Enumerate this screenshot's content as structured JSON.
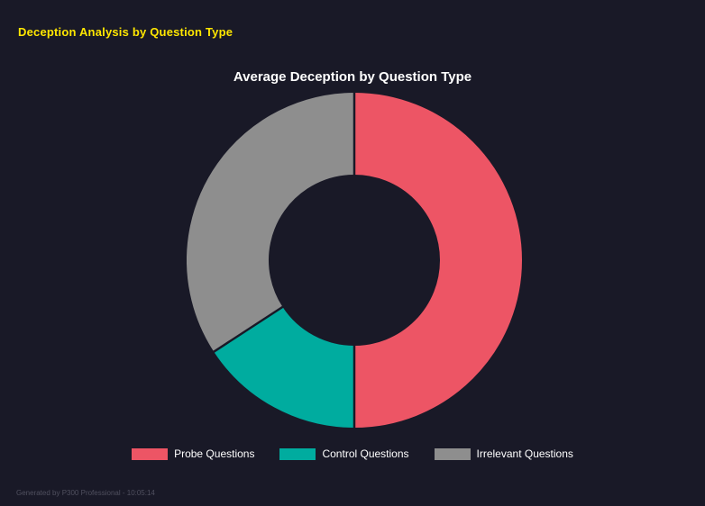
{
  "page": {
    "header": "Deception Analysis by Question Type",
    "footer": "Generated by P300 Professional - 10:05:14"
  },
  "chart_data": {
    "type": "pie",
    "subtype": "donut",
    "title": "Average Deception by Question Type",
    "categories": [
      "Probe Questions",
      "Control Questions",
      "Irrelevant Questions"
    ],
    "values": [
      50,
      15.8,
      34.2
    ],
    "unit": "percent-of-circle",
    "colors": [
      "#ed5565",
      "#00ac9f",
      "#8e8e8e"
    ],
    "legend_position": "bottom",
    "start_angle_deg": 0,
    "direction": "clockwise",
    "background": "#191927",
    "title_color": "#ffffff",
    "legend_text_color": "#ffffff"
  }
}
